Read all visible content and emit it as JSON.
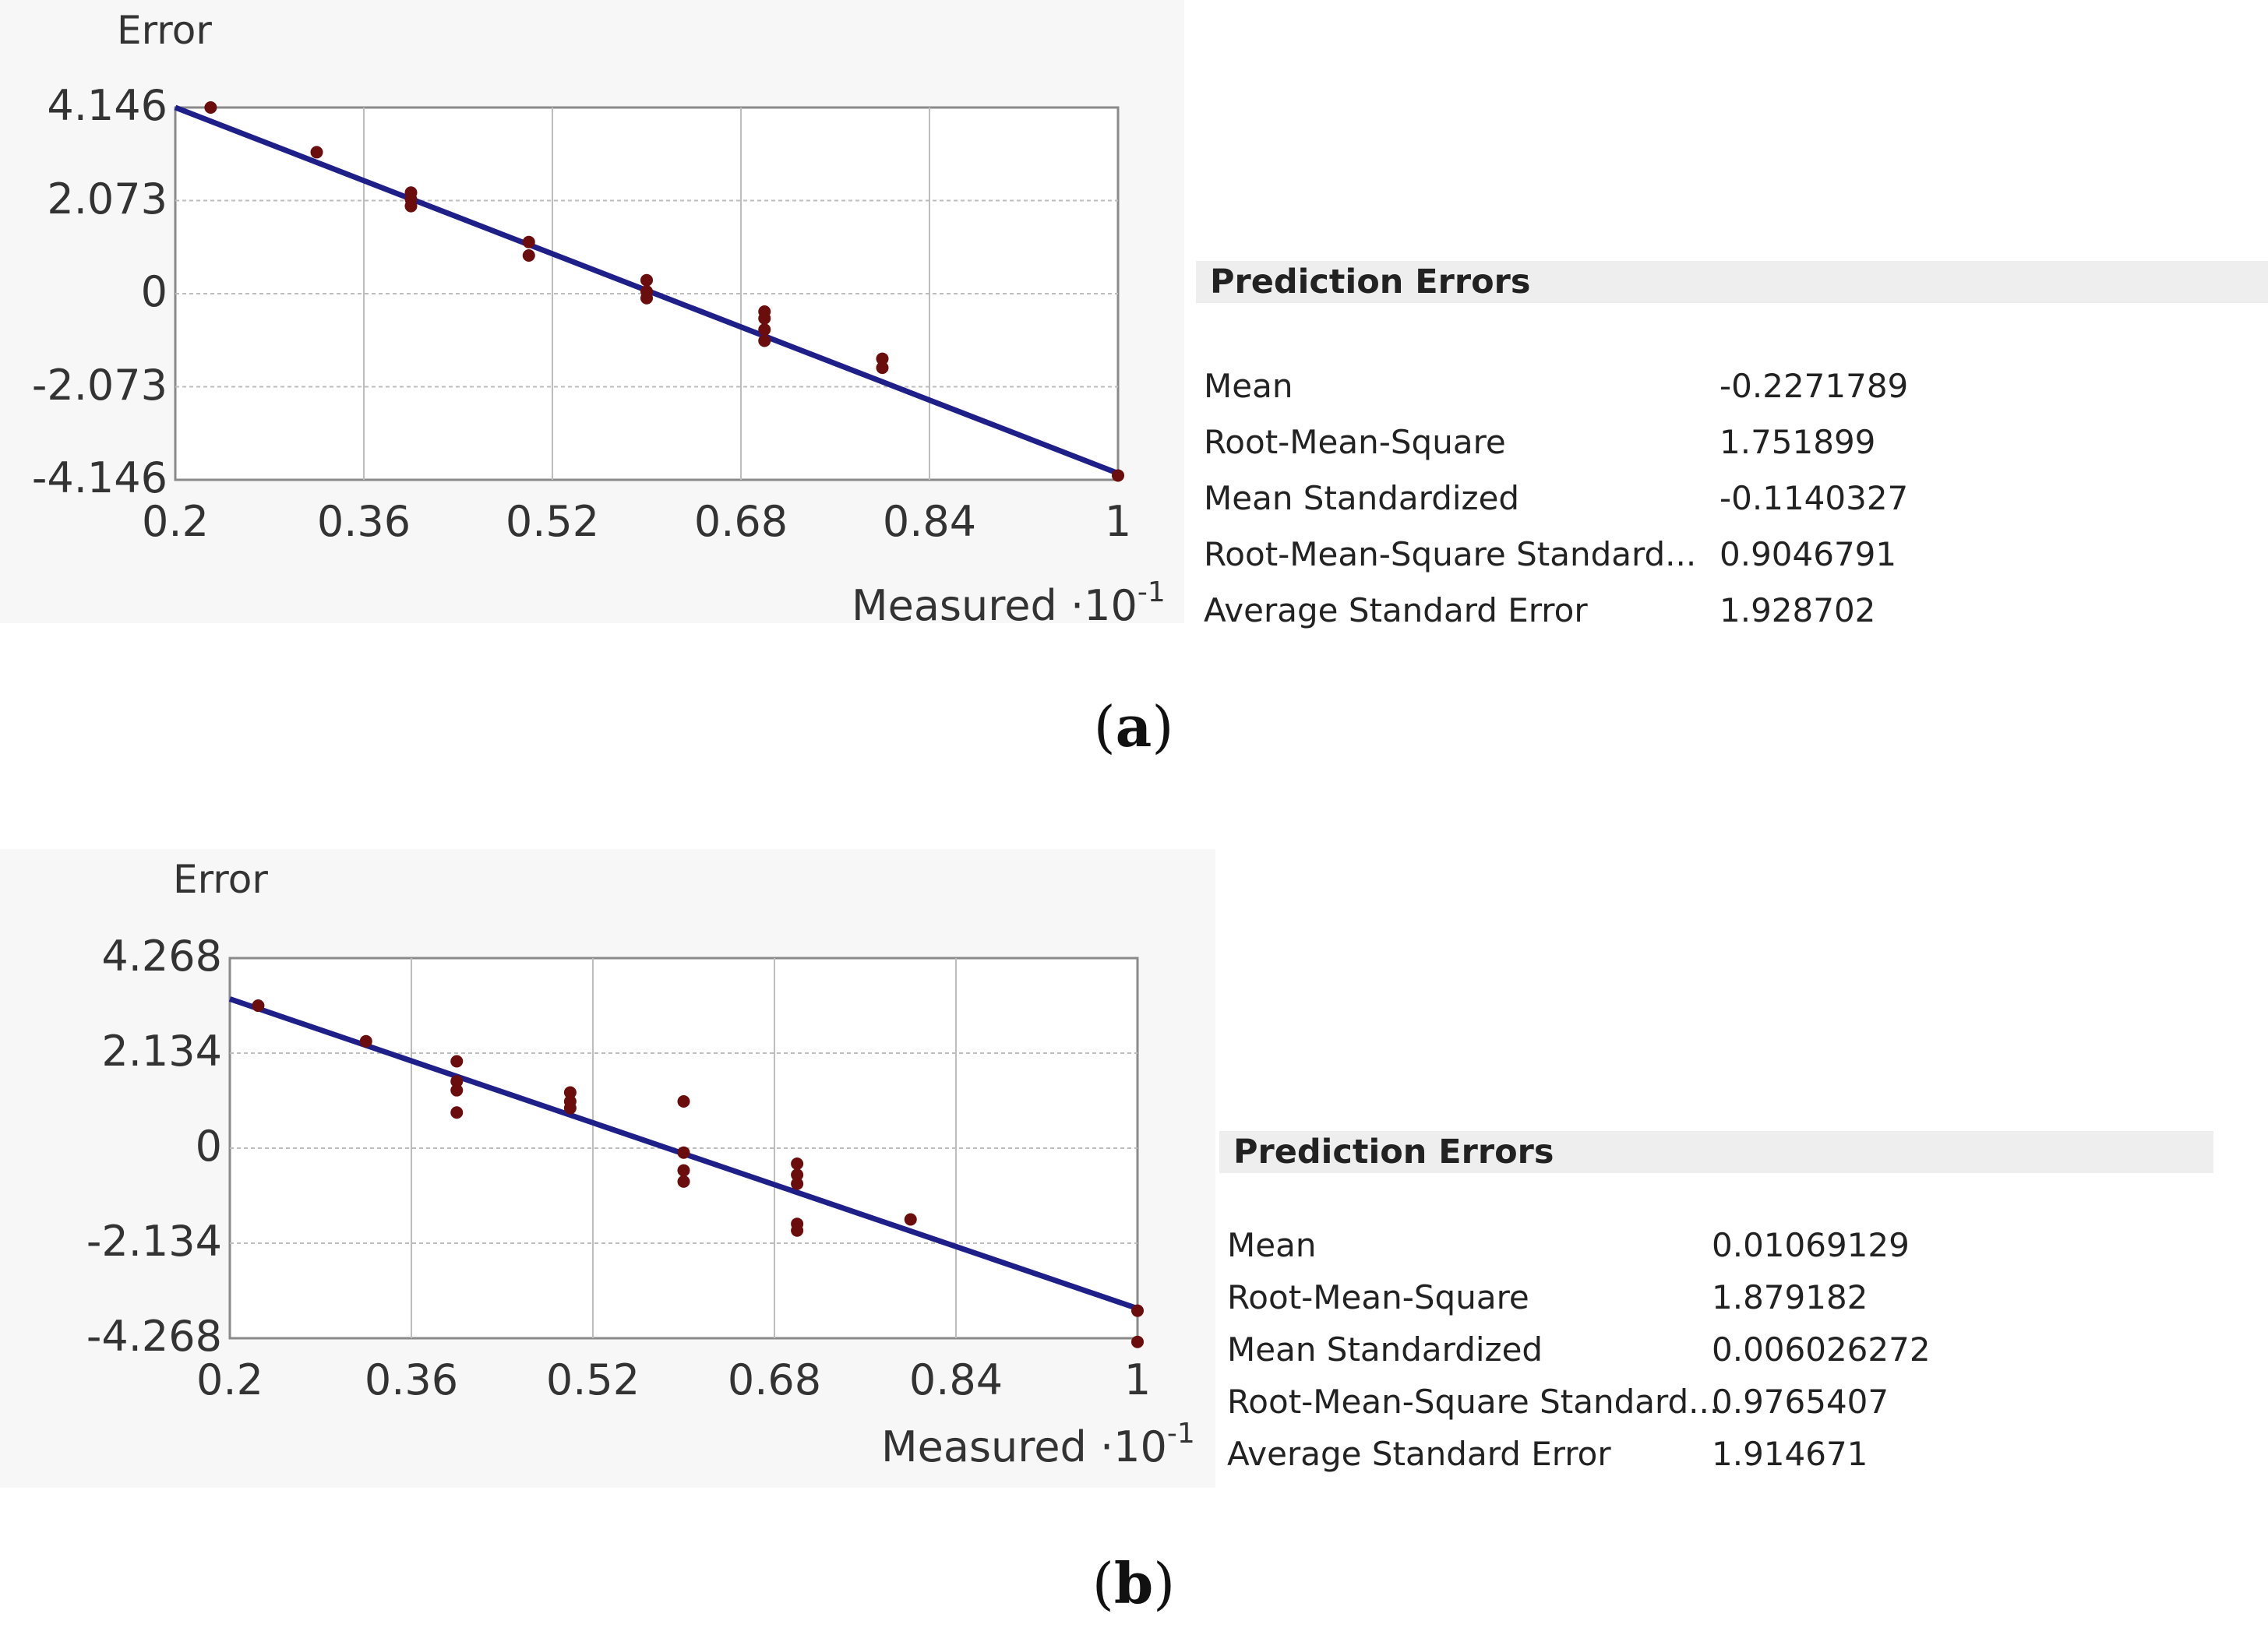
{
  "chart_data": [
    {
      "type": "scatter",
      "panel": "(a)",
      "ylabel": "Error",
      "xlabel": "Measured ·10",
      "xlabel_exponent": "-1",
      "xlim": [
        0.2,
        1.0
      ],
      "ylim": [
        -4.146,
        4.146
      ],
      "xticks": [
        "0.2",
        "0.36",
        "0.52",
        "0.68",
        "0.84",
        "1"
      ],
      "yticks": [
        "4.146",
        "2.073",
        "0",
        "-2.073",
        "-4.146"
      ],
      "grid": true,
      "points": [
        {
          "x": 0.23,
          "y": 4.146
        },
        {
          "x": 0.32,
          "y": 3.15
        },
        {
          "x": 0.4,
          "y": 2.25
        },
        {
          "x": 0.4,
          "y": 2.1
        },
        {
          "x": 0.4,
          "y": 1.95
        },
        {
          "x": 0.5,
          "y": 1.15
        },
        {
          "x": 0.5,
          "y": 0.85
        },
        {
          "x": 0.6,
          "y": 0.3
        },
        {
          "x": 0.6,
          "y": 0.05
        },
        {
          "x": 0.6,
          "y": -0.1
        },
        {
          "x": 0.7,
          "y": -0.4
        },
        {
          "x": 0.7,
          "y": -0.55
        },
        {
          "x": 0.7,
          "y": -0.8
        },
        {
          "x": 0.7,
          "y": -1.05
        },
        {
          "x": 0.8,
          "y": -1.45
        },
        {
          "x": 0.8,
          "y": -1.65
        },
        {
          "x": 1.0,
          "y": -4.05
        }
      ],
      "fit_line": [
        {
          "x": 0.2,
          "y": 4.146
        },
        {
          "x": 1.0,
          "y": -4.0
        }
      ],
      "colors": {
        "points": "#6b0d0d",
        "line": "#1f1f8a",
        "grid": "#bdbdbd"
      }
    },
    {
      "type": "scatter",
      "panel": "(b)",
      "ylabel": "Error",
      "xlabel": "Measured ·10",
      "xlabel_exponent": "-1",
      "xlim": [
        0.2,
        1.0
      ],
      "ylim": [
        -4.268,
        4.268
      ],
      "xticks": [
        "0.2",
        "0.36",
        "0.52",
        "0.68",
        "0.84",
        "1"
      ],
      "yticks": [
        "4.268",
        "2.134",
        "0",
        "-2.134",
        "-4.268"
      ],
      "grid": true,
      "points": [
        {
          "x": 0.225,
          "y": 3.2
        },
        {
          "x": 0.32,
          "y": 2.4
        },
        {
          "x": 0.4,
          "y": 1.95
        },
        {
          "x": 0.4,
          "y": 1.5
        },
        {
          "x": 0.4,
          "y": 1.3
        },
        {
          "x": 0.4,
          "y": 0.8
        },
        {
          "x": 0.5,
          "y": 1.25
        },
        {
          "x": 0.5,
          "y": 1.05
        },
        {
          "x": 0.5,
          "y": 0.9
        },
        {
          "x": 0.6,
          "y": 1.05
        },
        {
          "x": 0.6,
          "y": -0.1
        },
        {
          "x": 0.6,
          "y": -0.5
        },
        {
          "x": 0.6,
          "y": -0.75
        },
        {
          "x": 0.7,
          "y": -0.35
        },
        {
          "x": 0.7,
          "y": -0.6
        },
        {
          "x": 0.7,
          "y": -0.8
        },
        {
          "x": 0.7,
          "y": -1.7
        },
        {
          "x": 0.7,
          "y": -1.85
        },
        {
          "x": 0.8,
          "y": -1.6
        },
        {
          "x": 1.0,
          "y": -3.65
        },
        {
          "x": 1.0,
          "y": -4.35
        }
      ],
      "fit_line": [
        {
          "x": 0.2,
          "y": 3.35
        },
        {
          "x": 1.0,
          "y": -3.6
        }
      ],
      "colors": {
        "points": "#6b0d0d",
        "line": "#1f1f8a",
        "grid": "#bdbdbd"
      }
    }
  ],
  "prediction_errors": [
    {
      "title": "Prediction Errors",
      "rows": [
        {
          "name": "Mean",
          "value": "-0.2271789"
        },
        {
          "name": "Root-Mean-Square",
          "value": "1.751899"
        },
        {
          "name": "Mean Standardized",
          "value": "-0.1140327"
        },
        {
          "name": "Root-Mean-Square Standard...",
          "value": "0.9046791"
        },
        {
          "name": "Average Standard Error",
          "value": "1.928702"
        }
      ]
    },
    {
      "title": "Prediction Errors",
      "rows": [
        {
          "name": "Mean",
          "value": "0.01069129"
        },
        {
          "name": "Root-Mean-Square",
          "value": "1.879182"
        },
        {
          "name": "Mean Standardized",
          "value": "0.006026272"
        },
        {
          "name": "Root-Mean-Square Standard...",
          "value": "0.9765407"
        },
        {
          "name": "Average Standard Error",
          "value": "1.914671"
        }
      ]
    }
  ],
  "captions": {
    "a_open": "(",
    "a_letter": "a",
    "a_close": ")",
    "b_open": "(",
    "b_letter": "b",
    "b_close": ")"
  }
}
